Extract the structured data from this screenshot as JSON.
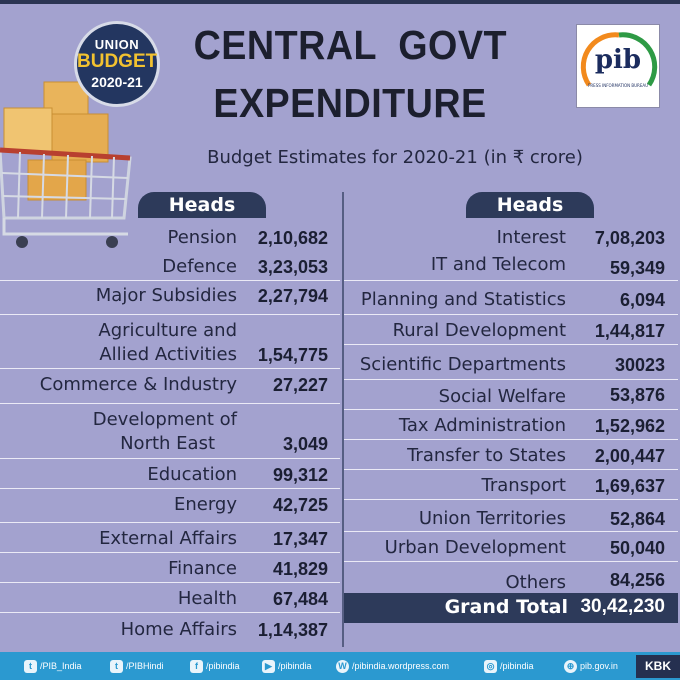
{
  "badge": {
    "line1": "UNION",
    "line2": "BUDGET",
    "line3": "2020-21"
  },
  "title": {
    "line1": "CENTRAL  GOVT",
    "line2": "EXPENDITURE"
  },
  "subtitle": "Budget Estimates for 2020-21 (in ₹ crore)",
  "logo": {
    "word": "pib",
    "sub": "PRESS INFORMATION BUREAU"
  },
  "headers": {
    "left": "Heads",
    "right": "Heads"
  },
  "left_items": [
    {
      "name": "Pension",
      "value": "2,10,682"
    },
    {
      "name": "Defence",
      "value": "3,23,053"
    },
    {
      "name": "Major Subsidies",
      "value": "2,27,794"
    },
    {
      "name": "Agriculture and",
      "name2": "Allied Activities",
      "value": "1,54,775"
    },
    {
      "name": "Commerce & Industry",
      "value": "27,227"
    },
    {
      "name": "Development of",
      "name2": "North East",
      "value": "3,049"
    },
    {
      "name": "Education",
      "value": "99,312"
    },
    {
      "name": "Energy",
      "value": "42,725"
    },
    {
      "name": "External Affairs",
      "value": "17,347"
    },
    {
      "name": "Finance",
      "value": "41,829"
    },
    {
      "name": "Health",
      "value": "67,484"
    },
    {
      "name": "Home Affairs",
      "value": "1,14,387"
    }
  ],
  "right_items": [
    {
      "name": "Interest",
      "value": "7,08,203"
    },
    {
      "name": "IT and Telecom",
      "value": "59,349"
    },
    {
      "name": "Planning and Statistics",
      "value": "6,094"
    },
    {
      "name": "Rural Development",
      "value": "1,44,817"
    },
    {
      "name": "Scientific Departments",
      "value": "30023"
    },
    {
      "name": "Social Welfare",
      "value": "53,876"
    },
    {
      "name": "Tax Administration",
      "value": "1,52,962"
    },
    {
      "name": "Transfer to States",
      "value": "2,00,447"
    },
    {
      "name": "Transport",
      "value": "1,69,637"
    },
    {
      "name": "Union Territories",
      "value": "52,864"
    },
    {
      "name": "Urban Development",
      "value": "50,040"
    },
    {
      "name": "Others",
      "value": "84,256"
    }
  ],
  "grand_total": {
    "label": "Grand Total",
    "value": "30,42,230"
  },
  "footer": {
    "twitter1": "/PIB_India",
    "twitter2": "/PIBHindi",
    "facebook": "/pibindia",
    "youtube": "/pibindia",
    "wordpress": "/pibindia.wordpress.com",
    "instagram": "/pibindia",
    "website": "pib.gov.in",
    "tag": "KBK"
  },
  "colors": {
    "background": "#a3a2cf",
    "header": "#2d3a5a",
    "footer": "#2b99d0",
    "badge_gold": "#f2c230"
  }
}
